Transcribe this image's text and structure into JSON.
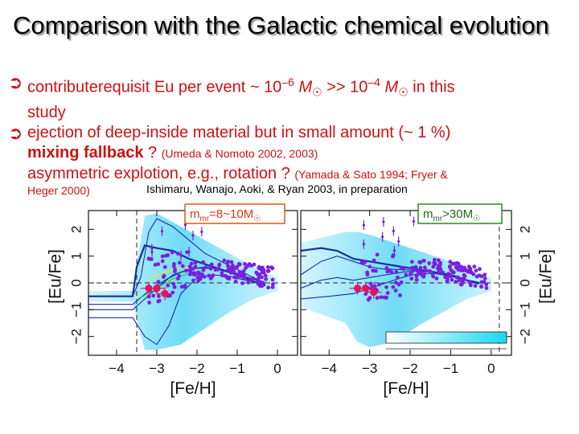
{
  "slide": {
    "title": "Comparison with the Galactic chemical evolution",
    "bullets": [
      {
        "icon": "arrow-right-circle-icon",
        "line1_a": "contributerequisit Eu per event ~ 10",
        "line1_exp1": "–6",
        "line1_m1": " M",
        "line1_b": " >> 10",
        "line1_exp2": "–4",
        "line1_m2": " M",
        "line1_c": " in this",
        "line2": "study"
      },
      {
        "icon": "arrow-right-circle-icon",
        "line1": "ejection of deep-inside material but in small amount (~ 1 %)",
        "line2_bold": "mixing fallback",
        "line2_rest": " ? ",
        "line2_ref": "(Umeda & Nomoto 2002, 2003)",
        "line3": "asymmetric explotion, e.g., rotation ? ",
        "line3_ref": "(Yamada & Sato 1994; Fryer &",
        "line4_ref": "Heger 2000)"
      }
    ],
    "attribution": "Ishimaru, Wanajo, Aoki, & Ryan 2003, in preparation"
  },
  "colors": {
    "bullet_text": "#cc1111",
    "cloud": "#55d4f4",
    "model_curve": "#1a2aa8",
    "data_points": "#7a1fe0",
    "highlight_points": "#e8105a",
    "label_left_border": "#d85a10",
    "label_right_border": "#2a8a20"
  },
  "chart_data": [
    {
      "type": "scatter",
      "panel": "left",
      "label_main": "m",
      "label_sub": "mr",
      "label_rest": "=8~10M",
      "xlabel": "[Fe/H]",
      "ylabel": "[Eu/Fe]",
      "xlim": [
        -4.7,
        0.5
      ],
      "ylim": [
        -2.7,
        2.7
      ],
      "xticks": [
        "−4",
        "−3",
        "−2",
        "−1",
        "0"
      ],
      "xtick_values": [
        -4,
        -3,
        -2,
        -1,
        0
      ],
      "yticks": [
        "−2",
        "−1",
        "0",
        "1",
        "2"
      ],
      "ytick_values": [
        -2,
        -1,
        0,
        1,
        2
      ],
      "dashed_y": 0,
      "dashed_x": -3.5,
      "curves": [
        {
          "name": "",
          "x": [
            -4.7,
            -3.6,
            -3.5,
            -3.3,
            -3.0,
            -2.6,
            -2.2,
            -1.8,
            -1.4,
            -1.0,
            -0.6,
            -0.3
          ],
          "y": [
            -0.5,
            -0.5,
            0.6,
            1.4,
            1.3,
            1.2,
            0.9,
            0.7,
            0.5,
            0.3,
            0.05,
            -0.1
          ]
        },
        {
          "name": "",
          "x": [
            -4.7,
            -3.6,
            -3.4,
            -3.2,
            -3.0,
            -2.6,
            -2.2,
            -1.8,
            -1.4,
            -1.0,
            -0.6,
            -0.3
          ],
          "y": [
            -0.5,
            -0.5,
            0.2,
            1.9,
            2.4,
            2.1,
            1.6,
            1.1,
            0.8,
            0.5,
            0.2,
            0.0
          ]
        },
        {
          "name": "",
          "x": [
            -4.7,
            -3.6,
            -3.3,
            -3.0,
            -2.6,
            -2.2,
            -1.8,
            -1.4,
            -1.0,
            -0.6,
            -0.3
          ],
          "y": [
            -1.0,
            -1.0,
            -0.6,
            -0.2,
            0.3,
            0.5,
            0.6,
            0.5,
            0.35,
            0.15,
            0.0
          ]
        },
        {
          "name": "",
          "x": [
            -4.7,
            -3.6,
            -3.3,
            -3.0,
            -2.7,
            -2.4,
            -2.0,
            -1.6,
            -1.2,
            -0.8,
            -0.3
          ],
          "y": [
            -1.3,
            -1.3,
            -2.0,
            -2.3,
            -1.6,
            -0.4,
            0.2,
            0.3,
            0.25,
            0.1,
            -0.05
          ]
        },
        {
          "name": "",
          "x": [
            -4.7,
            -3.6,
            -3.2,
            -2.8,
            -2.4,
            -2.0,
            -1.6,
            -1.2,
            -0.8,
            -0.3
          ],
          "y": [
            -0.8,
            -0.8,
            -0.3,
            0.1,
            0.4,
            0.55,
            0.55,
            0.4,
            0.2,
            0.0
          ]
        }
      ],
      "highlight": {
        "x": [
          -3.2,
          -3.0,
          -2.8
        ],
        "y": [
          -0.2,
          -0.2,
          -0.4
        ]
      }
    },
    {
      "type": "scatter",
      "panel": "right",
      "label_main": "m",
      "label_sub": "mr",
      "label_rest": ">30M",
      "xlabel": "[Fe/H]",
      "ylabel": "[Eu/Fe]",
      "xlim": [
        -4.7,
        0.5
      ],
      "ylim": [
        -2.7,
        2.7
      ],
      "xticks": [
        "−4",
        "−3",
        "−2",
        "−1",
        "0"
      ],
      "xtick_values": [
        -4,
        -3,
        -2,
        -1,
        0
      ],
      "yticks": [
        "−2",
        "−1",
        "0",
        "1",
        "2"
      ],
      "ytick_values": [
        -2,
        -1,
        0,
        1,
        2
      ],
      "dashed_y": 0,
      "dashed_x": 0.2,
      "curves": [
        {
          "name": "",
          "x": [
            -4.7,
            -4.2,
            -3.8,
            -3.4,
            -3.0,
            -2.6,
            -2.2,
            -1.8,
            -1.4,
            -1.0,
            -0.6,
            -0.3
          ],
          "y": [
            1.2,
            1.3,
            1.2,
            0.9,
            0.8,
            0.7,
            0.6,
            0.5,
            0.4,
            0.3,
            0.1,
            0.0
          ]
        },
        {
          "name": "",
          "x": [
            -4.7,
            -4.2,
            -3.8,
            -3.4,
            -3.0,
            -2.6,
            -2.2,
            -1.8,
            -1.4,
            -1.0,
            -0.6,
            -0.3
          ],
          "y": [
            0.3,
            0.8,
            1.0,
            0.8,
            0.6,
            0.5,
            0.5,
            0.45,
            0.4,
            0.3,
            0.1,
            0.0
          ]
        },
        {
          "name": "",
          "x": [
            -4.7,
            -4.2,
            -3.8,
            -3.4,
            -3.0,
            -2.6,
            -2.2,
            -1.8,
            -1.4,
            -1.0,
            -0.6,
            -0.3
          ],
          "y": [
            -0.2,
            0.1,
            0.2,
            0.1,
            0.2,
            0.3,
            0.4,
            0.45,
            0.4,
            0.3,
            0.1,
            0.0
          ]
        },
        {
          "name": "",
          "x": [
            -4.7,
            -4.0,
            -3.4,
            -3.0,
            -2.6,
            -2.2,
            -1.8,
            -1.4,
            -1.0,
            -0.6,
            -0.3
          ],
          "y": [
            -0.6,
            -0.5,
            -0.4,
            -0.2,
            0.0,
            0.2,
            0.35,
            0.35,
            0.25,
            0.1,
            -0.05
          ]
        }
      ],
      "highlight": {
        "x": [
          -3.3,
          -3.1,
          -2.9
        ],
        "y": [
          -0.2,
          -0.2,
          -0.35
        ]
      }
    }
  ]
}
